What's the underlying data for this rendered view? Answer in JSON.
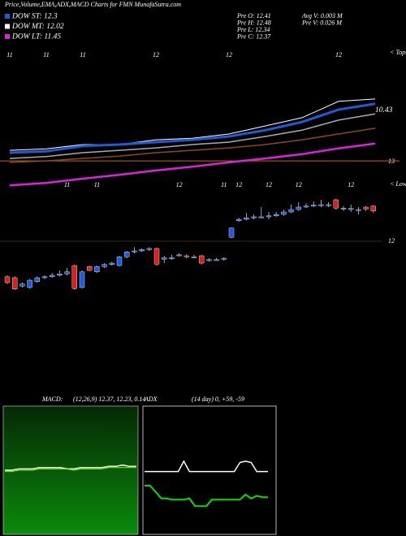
{
  "title": "Price,Volume,EMA,ADX,MACD Charts for FMN  MunafaSutra.com",
  "chart_data": [
    {
      "type": "line",
      "legend": [
        {
          "text": "DOW ST: 12.3",
          "color": "#1e5adc"
        },
        {
          "text": "DOW MT: 12.02",
          "color": "#ffffff"
        },
        {
          "text": "DOW LT: 11.45",
          "color": "#e020e0"
        }
      ],
      "info": [
        "Pre  O: 12.41",
        "Pre  H: 12.48",
        "Pre  L: 12.34",
        "Pre  C: 12.37",
        "Avg  V: 0.003 M",
        "Pre  V: 0.026  M"
      ],
      "top_label": "< Tops",
      "bottom_label": "< Lows",
      "right_labels": [
        "10.43",
        "13"
      ],
      "categories": [
        "11",
        "11",
        "11",
        null,
        "12",
        null,
        "12",
        null,
        null,
        "12",
        null
      ],
      "ylim": [
        11,
        13.2
      ],
      "levels": [
        {
          "value": 11.54,
          "color": "#c86400"
        }
      ],
      "series": [
        {
          "color": "#e020e0",
          "width": 2.5,
          "values": [
            11.03,
            11.08,
            11.17,
            11.25,
            11.34,
            11.42,
            11.51,
            11.59,
            11.68,
            11.8,
            11.9
          ]
        },
        {
          "color": "#8a4a20",
          "width": 1.5,
          "values": [
            11.51,
            11.54,
            11.59,
            11.64,
            11.71,
            11.76,
            11.81,
            11.88,
            11.98,
            12.1,
            12.22
          ]
        },
        {
          "color": "#aaaaaa",
          "width": 1.5,
          "values": [
            11.59,
            11.63,
            11.71,
            11.76,
            11.81,
            11.88,
            11.93,
            12.05,
            12.18,
            12.39,
            12.52
          ]
        },
        {
          "color": "#ffffff",
          "width": 1,
          "values": [
            11.76,
            11.79,
            11.88,
            11.88,
            11.98,
            12.01,
            12.1,
            12.27,
            12.44,
            12.78,
            12.83
          ]
        },
        {
          "color": "#1e5adc",
          "width": 3,
          "values": [
            11.71,
            11.74,
            11.85,
            11.88,
            11.93,
            11.98,
            12.05,
            12.18,
            12.35,
            12.61,
            12.73
          ]
        }
      ]
    },
    {
      "type": "candlestick",
      "up_color": "#1e5adc",
      "down_color": "#dc1e1e",
      "categories": [
        null,
        null,
        null,
        null,
        null,
        null,
        null,
        null,
        "11",
        null,
        null,
        null,
        "11",
        null,
        null,
        null,
        null,
        null,
        null,
        null,
        null,
        null,
        null,
        "12",
        null,
        null,
        null,
        null,
        null,
        "11",
        null,
        "12",
        null,
        null,
        null,
        "12",
        null,
        null,
        null,
        "12",
        null,
        null,
        null,
        null,
        null,
        null,
        "12",
        null,
        null,
        null
      ],
      "ylim": [
        10.8,
        12.95
      ],
      "yticks": [
        12
      ],
      "grid": true,
      "open": [
        11.27,
        11.25,
        11.08,
        11.05,
        11.17,
        11.25,
        11.27,
        11.3,
        11.33,
        11.5,
        11.05,
        11.48,
        11.37,
        11.48,
        11.52,
        11.5,
        11.68,
        11.78,
        11.8,
        11.83,
        11.85,
        11.63,
        11.66,
        11.7,
        11.7,
        11.68,
        11.7,
        11.6,
        11.62,
        11.63,
        12.08,
        12.42,
        12.45,
        12.48,
        12.5,
        12.5,
        12.52,
        12.55,
        12.6,
        12.65,
        12.7,
        12.72,
        12.74,
        12.75,
        12.85,
        12.68,
        12.67,
        12.65,
        12.7,
        12.72
      ],
      "high": [
        11.3,
        11.28,
        11.15,
        11.22,
        11.28,
        11.3,
        11.35,
        11.4,
        11.45,
        11.52,
        11.4,
        11.5,
        11.5,
        11.55,
        11.58,
        11.7,
        11.8,
        11.88,
        11.85,
        11.88,
        11.87,
        11.7,
        11.72,
        11.75,
        11.73,
        11.72,
        11.72,
        11.65,
        11.66,
        11.67,
        12.28,
        12.48,
        12.58,
        12.55,
        12.7,
        12.6,
        12.6,
        12.65,
        12.75,
        12.8,
        12.78,
        12.82,
        12.85,
        12.8,
        12.87,
        12.72,
        12.75,
        12.7,
        12.72,
        12.74
      ],
      "low": [
        11.12,
        11.0,
        11.05,
        11.03,
        11.15,
        11.22,
        11.25,
        11.28,
        11.3,
        11.0,
        11.03,
        11.38,
        11.35,
        11.45,
        11.5,
        11.48,
        11.65,
        11.75,
        11.78,
        11.8,
        11.5,
        11.55,
        11.62,
        11.68,
        11.65,
        11.65,
        11.52,
        11.58,
        11.6,
        11.6,
        12.06,
        12.4,
        12.43,
        12.45,
        12.48,
        12.45,
        12.5,
        12.52,
        12.58,
        12.62,
        12.68,
        12.7,
        12.7,
        12.7,
        12.65,
        12.62,
        12.6,
        12.55,
        12.62,
        12.58
      ],
      "close": [
        11.15,
        11.02,
        11.12,
        11.2,
        11.25,
        11.27,
        11.3,
        11.33,
        11.37,
        11.03,
        11.37,
        11.4,
        11.48,
        11.52,
        11.55,
        11.68,
        11.78,
        11.8,
        11.83,
        11.85,
        11.53,
        11.66,
        11.66,
        11.72,
        11.68,
        11.68,
        11.55,
        11.62,
        11.62,
        11.65,
        12.27,
        12.45,
        12.48,
        12.5,
        12.5,
        12.52,
        12.55,
        12.6,
        12.65,
        12.7,
        12.72,
        12.74,
        12.75,
        12.75,
        12.68,
        12.68,
        12.67,
        12.65,
        12.66,
        12.62
      ]
    },
    {
      "type": "line",
      "title": "MACD:",
      "subtitle": "(12,26,9) 12.37, 12.23, 0.14",
      "ylim": [
        -0.5,
        0.5
      ],
      "series": [
        {
          "color": "#ffffff",
          "width": 1.5,
          "values": [
            0,
            0,
            0.01,
            0.01,
            0.01,
            0.02,
            0.02,
            0.02,
            0.02,
            0.01,
            0.01,
            0.02,
            0.02,
            0.02,
            0.02,
            0.03,
            0.03,
            0.04,
            0.03,
            0.03
          ]
        },
        {
          "color": "#7cfc00",
          "width": 1,
          "values": [
            -0.01,
            -0.01,
            0,
            0,
            0,
            0.01,
            0.01,
            0.01,
            0.01,
            0.01,
            0,
            0.01,
            0.01,
            0.01,
            0.01,
            0.02,
            0.02,
            0.02,
            0.02,
            0.02
          ]
        }
      ]
    },
    {
      "type": "line",
      "title": "ADX",
      "subtitle": "(14  day) 0, +59, -59",
      "ylim": [
        0,
        100
      ],
      "series": [
        {
          "color": "#ffffff",
          "width": 1.5,
          "values": [
            49,
            49,
            49,
            49,
            49,
            49,
            49,
            57,
            49,
            49,
            49,
            49,
            49,
            49,
            49,
            49,
            49,
            56,
            57,
            56,
            49,
            49,
            49
          ]
        },
        {
          "color": "#00e000",
          "width": 2,
          "values": [
            38,
            38,
            33,
            28,
            28,
            27,
            27,
            27,
            28,
            22,
            22,
            22,
            27,
            27,
            27,
            27,
            27,
            27,
            31,
            28,
            30,
            29,
            29
          ]
        }
      ]
    }
  ]
}
